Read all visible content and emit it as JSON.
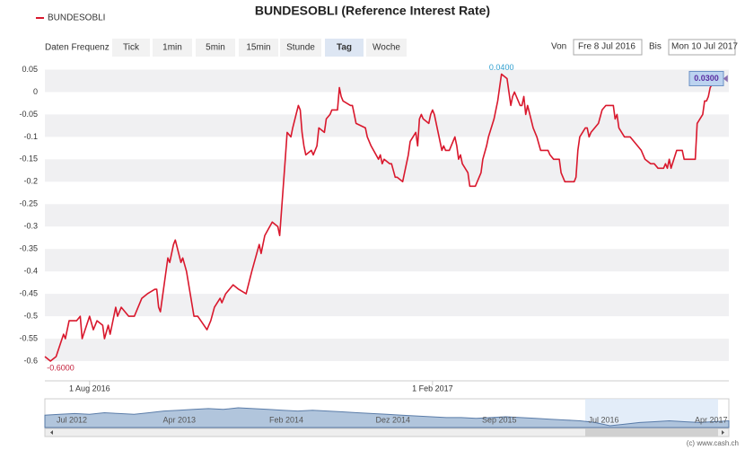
{
  "ui": {
    "frequency_label": "Daten Frequenz",
    "frequencies": [
      "Tick",
      "1min",
      "5min",
      "15min",
      "Stunde",
      "Tag",
      "Woche"
    ],
    "selected": 5,
    "from_label": "Von",
    "from": "Fre 8 Jul 2016",
    "to_label": "Bis",
    "to": "Mon 10 Jul 2017",
    "credit": "(c) www.cash.ch"
  },
  "chart_data": {
    "type": "line",
    "title": "BUNDESOBLI (Reference Interest Rate)",
    "x": [
      "2016-07-08",
      "2016-07-11",
      "2016-07-14",
      "2016-07-18",
      "2016-07-19",
      "2016-07-21",
      "2016-07-25",
      "2016-07-27",
      "2016-07-28",
      "2016-08-01",
      "2016-08-03",
      "2016-08-05",
      "2016-08-08",
      "2016-08-09",
      "2016-08-11",
      "2016-08-12",
      "2016-08-15",
      "2016-08-16",
      "2016-08-18",
      "2016-08-22",
      "2016-08-25",
      "2016-08-29",
      "2016-09-01",
      "2016-09-05",
      "2016-09-06",
      "2016-09-07",
      "2016-09-08",
      "2016-09-12",
      "2016-09-13",
      "2016-09-15",
      "2016-09-16",
      "2016-09-19",
      "2016-09-20",
      "2016-09-22",
      "2016-09-26",
      "2016-09-28",
      "2016-10-03",
      "2016-10-05",
      "2016-10-07",
      "2016-10-10",
      "2016-10-11",
      "2016-10-13",
      "2016-10-17",
      "2016-10-20",
      "2016-10-24",
      "2016-10-27",
      "2016-10-31",
      "2016-11-01",
      "2016-11-03",
      "2016-11-07",
      "2016-11-10",
      "2016-11-11",
      "2016-11-14",
      "2016-11-15",
      "2016-11-17",
      "2016-11-18",
      "2016-11-21",
      "2016-11-22",
      "2016-11-23",
      "2016-11-24",
      "2016-11-25",
      "2016-11-28",
      "2016-11-29",
      "2016-12-01",
      "2016-12-02",
      "2016-12-05",
      "2016-12-06",
      "2016-12-08",
      "2016-12-09",
      "2016-12-12",
      "2016-12-13",
      "2016-12-14",
      "2016-12-15",
      "2016-12-19",
      "2016-12-20",
      "2016-12-21",
      "2016-12-22",
      "2016-12-27",
      "2016-12-28",
      "2016-12-30",
      "2017-01-03",
      "2017-01-04",
      "2017-01-05",
      "2017-01-06",
      "2017-01-09",
      "2017-01-10",
      "2017-01-12",
      "2017-01-13",
      "2017-01-16",
      "2017-01-17",
      "2017-01-19",
      "2017-01-20",
      "2017-01-23",
      "2017-01-24",
      "2017-01-25",
      "2017-01-26",
      "2017-01-27",
      "2017-01-30",
      "2017-01-31",
      "2017-02-01",
      "2017-02-02",
      "2017-02-06",
      "2017-02-07",
      "2017-02-08",
      "2017-02-10",
      "2017-02-13",
      "2017-02-14",
      "2017-02-15",
      "2017-02-16",
      "2017-02-17",
      "2017-02-20",
      "2017-02-21",
      "2017-02-24",
      "2017-02-27",
      "2017-02-28",
      "2017-03-02",
      "2017-03-03",
      "2017-03-06",
      "2017-03-08",
      "2017-03-10",
      "2017-03-13",
      "2017-03-14",
      "2017-03-15",
      "2017-03-16",
      "2017-03-17",
      "2017-03-20",
      "2017-03-21",
      "2017-03-22",
      "2017-03-23",
      "2017-03-24",
      "2017-03-27",
      "2017-03-29",
      "2017-03-31",
      "2017-04-04",
      "2017-04-05",
      "2017-04-07",
      "2017-04-10",
      "2017-04-11",
      "2017-04-13",
      "2017-04-18",
      "2017-04-19",
      "2017-04-20",
      "2017-04-21",
      "2017-04-24",
      "2017-04-25",
      "2017-04-26",
      "2017-04-27",
      "2017-05-01",
      "2017-05-03",
      "2017-05-05",
      "2017-05-09",
      "2017-05-10",
      "2017-05-11",
      "2017-05-12",
      "2017-05-15",
      "2017-05-18",
      "2017-05-22",
      "2017-05-24",
      "2017-05-26",
      "2017-05-29",
      "2017-05-31",
      "2017-06-02",
      "2017-06-05",
      "2017-06-06",
      "2017-06-07",
      "2017-06-08",
      "2017-06-09",
      "2017-06-12",
      "2017-06-15",
      "2017-06-16",
      "2017-06-22",
      "2017-06-23",
      "2017-06-26",
      "2017-06-27",
      "2017-06-28",
      "2017-06-29",
      "2017-06-30",
      "2017-07-03",
      "2017-07-04",
      "2017-07-05",
      "2017-07-07"
    ],
    "series": [
      {
        "name": "BUNDESOBLI",
        "color": "#d9182d",
        "values": [
          -0.59,
          -0.6,
          -0.59,
          -0.54,
          -0.55,
          -0.51,
          -0.51,
          -0.5,
          -0.55,
          -0.5,
          -0.53,
          -0.51,
          -0.52,
          -0.55,
          -0.52,
          -0.54,
          -0.48,
          -0.5,
          -0.48,
          -0.5,
          -0.5,
          -0.46,
          -0.45,
          -0.44,
          -0.44,
          -0.48,
          -0.49,
          -0.37,
          -0.38,
          -0.34,
          -0.33,
          -0.38,
          -0.37,
          -0.4,
          -0.5,
          -0.5,
          -0.53,
          -0.51,
          -0.48,
          -0.46,
          -0.47,
          -0.45,
          -0.43,
          -0.44,
          -0.45,
          -0.4,
          -0.34,
          -0.36,
          -0.32,
          -0.29,
          -0.3,
          -0.32,
          -0.15,
          -0.09,
          -0.1,
          -0.08,
          -0.03,
          -0.04,
          -0.09,
          -0.12,
          -0.14,
          -0.13,
          -0.14,
          -0.12,
          -0.08,
          -0.09,
          -0.06,
          -0.05,
          -0.04,
          -0.04,
          0.01,
          -0.01,
          -0.02,
          -0.03,
          -0.03,
          -0.05,
          -0.07,
          -0.08,
          -0.1,
          -0.12,
          -0.15,
          -0.14,
          -0.16,
          -0.15,
          -0.16,
          -0.16,
          -0.19,
          -0.19,
          -0.2,
          -0.18,
          -0.14,
          -0.11,
          -0.09,
          -0.12,
          -0.06,
          -0.05,
          -0.06,
          -0.07,
          -0.05,
          -0.04,
          -0.05,
          -0.13,
          -0.12,
          -0.13,
          -0.13,
          -0.1,
          -0.12,
          -0.15,
          -0.14,
          -0.16,
          -0.18,
          -0.21,
          -0.21,
          -0.18,
          -0.15,
          -0.12,
          -0.1,
          -0.06,
          -0.02,
          0.04,
          0.03,
          0.0,
          -0.03,
          -0.01,
          0.0,
          -0.03,
          -0.03,
          -0.01,
          -0.05,
          -0.03,
          -0.08,
          -0.1,
          -0.13,
          -0.13,
          -0.14,
          -0.15,
          -0.15,
          -0.18,
          -0.2,
          -0.2,
          -0.19,
          -0.13,
          -0.1,
          -0.08,
          -0.08,
          -0.1,
          -0.09,
          -0.07,
          -0.04,
          -0.03,
          -0.03,
          -0.06,
          -0.05,
          -0.08,
          -0.1,
          -0.1,
          -0.12,
          -0.13,
          -0.15,
          -0.16,
          -0.16,
          -0.17,
          -0.17,
          -0.16,
          -0.17,
          -0.15,
          -0.17,
          -0.13,
          -0.13,
          -0.15,
          -0.15,
          -0.07,
          -0.05,
          -0.02,
          -0.02,
          -0.01,
          0.01,
          0.03,
          0.04,
          0.03,
          0.03
        ]
      }
    ],
    "xlim": [
      "2016-07-08",
      "2017-07-10"
    ],
    "xticks": [
      {
        "value": "2016-08-01",
        "label": "1 Aug 2016"
      },
      {
        "value": "2017-02-01",
        "label": "1 Feb 2017"
      }
    ],
    "ylim": [
      -0.64,
      0.065
    ],
    "yticks": [
      0.05,
      0,
      -0.05,
      -0.1,
      -0.15,
      -0.2,
      -0.25,
      -0.3,
      -0.35,
      -0.4,
      -0.45,
      -0.5,
      -0.55,
      -0.6
    ],
    "grid": "bands",
    "annotations": [
      {
        "x": "2016-07-11",
        "value": -0.6,
        "label": "-0.6000",
        "kind": "min"
      },
      {
        "x": "2017-03-10",
        "value": 0.04,
        "label": "0.0400",
        "kind": "max"
      },
      {
        "x": "2017-07-07",
        "value": 0.03,
        "label": "0.0300",
        "kind": "last"
      }
    ],
    "navigator": {
      "labels": [
        "Jul 2012",
        "Apr 2013",
        "Feb 2014",
        "Dez 2014",
        "Sep 2015",
        "Jul 2016",
        "Apr 2017"
      ],
      "values": [
        0.45,
        0.5,
        0.55,
        0.5,
        0.6,
        0.55,
        0.5,
        0.6,
        0.7,
        0.75,
        0.8,
        0.85,
        0.8,
        0.9,
        0.85,
        0.8,
        0.75,
        0.7,
        0.75,
        0.7,
        0.65,
        0.6,
        0.55,
        0.5,
        0.45,
        0.4,
        0.35,
        0.3,
        0.3,
        0.25,
        0.3,
        0.35,
        0.3,
        0.25,
        0.2,
        0.15,
        0.1,
        0.0,
        -0.2,
        -0.1,
        0.0,
        0.05,
        0.1,
        0.05,
        0.0,
        0.05,
        0.1
      ]
    }
  }
}
